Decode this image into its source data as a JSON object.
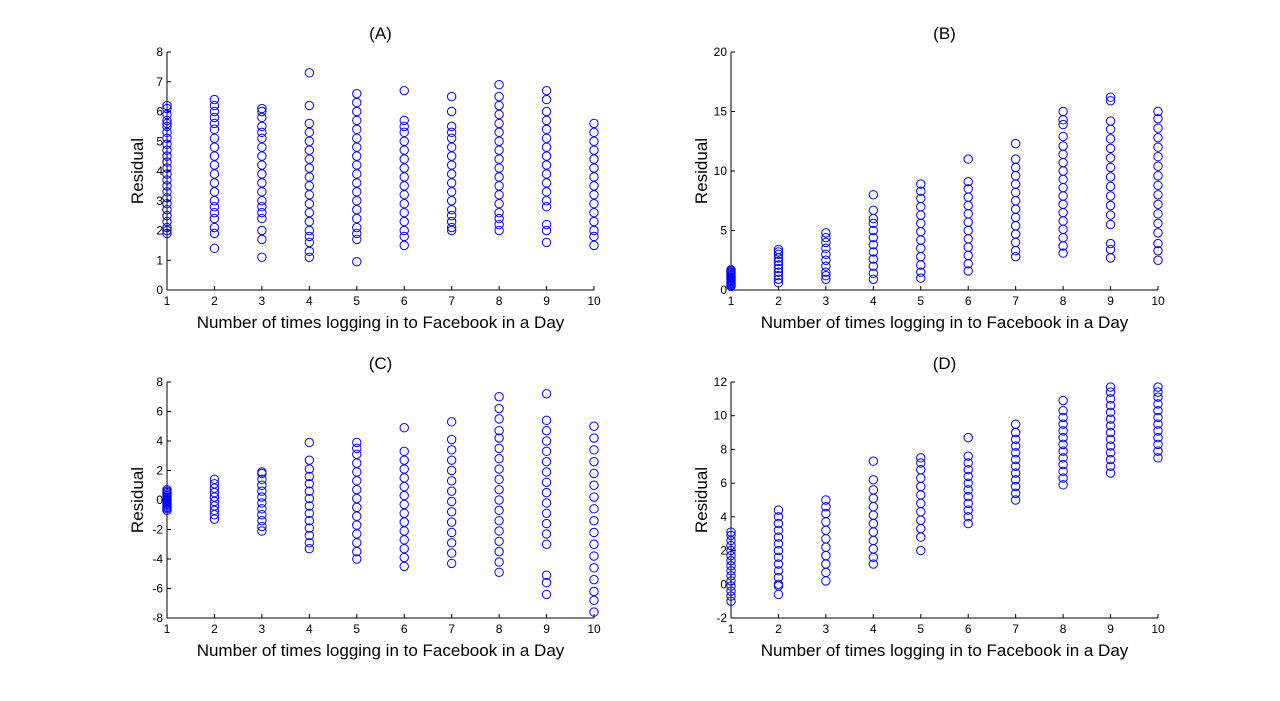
{
  "figure": {
    "background": "#ffffff",
    "marker_color": "#0000ff"
  },
  "chart_data": [
    {
      "type": "scatter",
      "title": "(A)",
      "xlabel": "Number of times logging in to Facebook in a Day",
      "ylabel": "Residual",
      "xlim": [
        1,
        10
      ],
      "ylim": [
        0,
        8
      ],
      "xticks": [
        1,
        2,
        3,
        4,
        5,
        6,
        7,
        8,
        9,
        10
      ],
      "yticks": [
        0,
        1,
        2,
        3,
        4,
        5,
        6,
        7,
        8
      ],
      "marker": "open-circle",
      "color": "#0000ff",
      "grid": false,
      "points_by_x": [
        {
          "x": 1,
          "y": [
            1.9,
            2.0,
            2.1,
            2.3,
            2.5,
            2.7,
            2.9,
            3.1,
            3.3,
            3.5,
            3.7,
            3.9,
            4.1,
            4.3,
            4.5,
            4.7,
            4.9,
            5.1,
            5.3,
            5.5,
            5.6,
            5.7,
            5.9,
            6.1,
            6.2
          ]
        },
        {
          "x": 2,
          "y": [
            1.4,
            1.9,
            2.1,
            2.4,
            2.6,
            2.8,
            3.0,
            3.3,
            3.6,
            3.9,
            4.2,
            4.5,
            4.8,
            5.1,
            5.4,
            5.6,
            5.8,
            6.0,
            6.2,
            6.4
          ]
        },
        {
          "x": 3,
          "y": [
            1.1,
            1.7,
            2.0,
            2.4,
            2.6,
            2.8,
            3.0,
            3.3,
            3.6,
            3.9,
            4.2,
            4.5,
            4.8,
            5.1,
            5.3,
            5.5,
            5.8,
            6.0,
            6.1
          ]
        },
        {
          "x": 4,
          "y": [
            1.1,
            1.3,
            1.6,
            1.8,
            2.0,
            2.3,
            2.6,
            2.9,
            3.2,
            3.5,
            3.8,
            4.1,
            4.4,
            4.7,
            5.0,
            5.3,
            5.6,
            6.2,
            7.3
          ]
        },
        {
          "x": 5,
          "y": [
            0.95,
            1.7,
            1.9,
            2.1,
            2.4,
            2.7,
            3.0,
            3.3,
            3.6,
            3.9,
            4.2,
            4.5,
            4.8,
            5.1,
            5.4,
            5.7,
            6.0,
            6.3,
            6.6
          ]
        },
        {
          "x": 6,
          "y": [
            1.5,
            1.8,
            2.0,
            2.3,
            2.6,
            2.9,
            3.2,
            3.5,
            3.8,
            4.1,
            4.4,
            4.7,
            5.0,
            5.3,
            5.5,
            5.7,
            6.7
          ]
        },
        {
          "x": 7,
          "y": [
            2.0,
            2.1,
            2.3,
            2.5,
            2.7,
            3.0,
            3.3,
            3.6,
            3.9,
            4.2,
            4.5,
            4.8,
            5.1,
            5.3,
            5.5,
            6.0,
            6.5
          ]
        },
        {
          "x": 8,
          "y": [
            2.0,
            2.2,
            2.4,
            2.6,
            2.9,
            3.2,
            3.5,
            3.8,
            4.1,
            4.4,
            4.7,
            5.0,
            5.3,
            5.6,
            5.9,
            6.2,
            6.5,
            6.9
          ]
        },
        {
          "x": 9,
          "y": [
            1.6,
            2.0,
            2.2,
            2.8,
            3.0,
            3.3,
            3.6,
            3.9,
            4.2,
            4.5,
            4.8,
            5.1,
            5.4,
            5.7,
            6.0,
            6.4,
            6.7
          ]
        },
        {
          "x": 10,
          "y": [
            1.5,
            1.8,
            2.0,
            2.3,
            2.6,
            2.9,
            3.2,
            3.5,
            3.8,
            4.1,
            4.4,
            4.7,
            5.0,
            5.3,
            5.6
          ]
        }
      ]
    },
    {
      "type": "scatter",
      "title": "(B)",
      "xlabel": "Number of times logging in to Facebook in a Day",
      "ylabel": "Residual",
      "xlim": [
        1,
        10
      ],
      "ylim": [
        0,
        20
      ],
      "xticks": [
        1,
        2,
        3,
        4,
        5,
        6,
        7,
        8,
        9,
        10
      ],
      "yticks": [
        0,
        5,
        10,
        15,
        20
      ],
      "marker": "open-circle",
      "color": "#0000ff",
      "grid": false,
      "points_by_x": [
        {
          "x": 1,
          "y": [
            0.3,
            0.4,
            0.5,
            0.6,
            0.7,
            0.8,
            0.9,
            1.0,
            1.1,
            1.2,
            1.3,
            1.4,
            1.5,
            1.6,
            1.7
          ]
        },
        {
          "x": 2,
          "y": [
            0.6,
            0.9,
            1.2,
            1.5,
            1.8,
            2.1,
            2.4,
            2.7,
            3.0,
            3.2,
            3.4
          ]
        },
        {
          "x": 3,
          "y": [
            0.9,
            1.2,
            1.5,
            2.0,
            2.5,
            3.0,
            3.5,
            4.0,
            4.4,
            4.8
          ]
        },
        {
          "x": 4,
          "y": [
            0.9,
            1.4,
            2.0,
            2.6,
            3.2,
            3.8,
            4.4,
            5.0,
            5.6,
            6.0,
            6.7,
            8.0
          ]
        },
        {
          "x": 5,
          "y": [
            1.0,
            1.5,
            2.1,
            2.8,
            3.5,
            4.2,
            4.9,
            5.6,
            6.3,
            7.0,
            7.7,
            8.3,
            8.9
          ]
        },
        {
          "x": 6,
          "y": [
            1.6,
            2.2,
            2.9,
            3.6,
            4.3,
            5.0,
            5.7,
            6.4,
            7.1,
            7.8,
            8.5,
            9.1,
            11.0
          ]
        },
        {
          "x": 7,
          "y": [
            2.8,
            3.3,
            4.0,
            4.7,
            5.4,
            6.1,
            6.8,
            7.5,
            8.2,
            8.9,
            9.6,
            10.3,
            11.0,
            12.3
          ]
        },
        {
          "x": 8,
          "y": [
            3.1,
            3.7,
            4.4,
            5.1,
            5.8,
            6.5,
            7.2,
            7.9,
            8.6,
            9.3,
            10.0,
            10.7,
            11.4,
            12.1,
            12.9,
            13.9,
            14.3,
            15.0
          ]
        },
        {
          "x": 9,
          "y": [
            2.7,
            3.4,
            3.9,
            5.5,
            6.3,
            7.1,
            7.9,
            8.7,
            9.5,
            10.3,
            11.1,
            11.9,
            12.7,
            13.5,
            14.2,
            15.9,
            16.2
          ]
        },
        {
          "x": 10,
          "y": [
            2.5,
            3.3,
            3.9,
            4.8,
            5.6,
            6.4,
            7.2,
            8.0,
            8.8,
            9.6,
            10.4,
            11.2,
            12.0,
            12.8,
            13.6,
            14.4,
            15.0
          ]
        }
      ]
    },
    {
      "type": "scatter",
      "title": "(C)",
      "xlabel": "Number of times logging in to Facebook in a Day",
      "ylabel": "Residual",
      "xlim": [
        1,
        10
      ],
      "ylim": [
        -8,
        8
      ],
      "xticks": [
        1,
        2,
        3,
        4,
        5,
        6,
        7,
        8,
        9,
        10
      ],
      "yticks": [
        -8,
        -6,
        -4,
        -2,
        0,
        2,
        4,
        6,
        8
      ],
      "marker": "open-circle",
      "color": "#0000ff",
      "grid": false,
      "points_by_x": [
        {
          "x": 1,
          "y": [
            -0.7,
            -0.6,
            -0.5,
            -0.4,
            -0.3,
            -0.2,
            -0.1,
            0.0,
            0.1,
            0.2,
            0.3,
            0.4,
            0.5,
            0.6,
            0.7
          ]
        },
        {
          "x": 2,
          "y": [
            -1.3,
            -1.0,
            -0.7,
            -0.4,
            -0.1,
            0.2,
            0.5,
            0.8,
            1.1,
            1.4
          ]
        },
        {
          "x": 3,
          "y": [
            -2.1,
            -1.8,
            -1.4,
            -1.0,
            -0.6,
            -0.2,
            0.2,
            0.6,
            1.0,
            1.4,
            1.8,
            1.9
          ]
        },
        {
          "x": 4,
          "y": [
            -3.3,
            -2.9,
            -2.4,
            -1.9,
            -1.4,
            -0.9,
            -0.4,
            0.1,
            0.6,
            1.1,
            1.6,
            2.1,
            2.7,
            3.9
          ]
        },
        {
          "x": 5,
          "y": [
            -4.0,
            -3.5,
            -2.9,
            -2.3,
            -1.7,
            -1.1,
            -0.5,
            0.1,
            0.7,
            1.3,
            1.9,
            2.5,
            3.1,
            3.5,
            3.9
          ]
        },
        {
          "x": 6,
          "y": [
            -4.5,
            -3.9,
            -3.3,
            -2.7,
            -2.1,
            -1.5,
            -0.9,
            -0.3,
            0.3,
            0.9,
            1.5,
            2.1,
            2.7,
            3.3,
            4.9
          ]
        },
        {
          "x": 7,
          "y": [
            -4.3,
            -3.6,
            -2.9,
            -2.2,
            -1.5,
            -0.8,
            -0.1,
            0.6,
            1.3,
            2.0,
            2.7,
            3.4,
            4.1,
            5.3
          ]
        },
        {
          "x": 8,
          "y": [
            -4.9,
            -4.2,
            -3.5,
            -2.8,
            -2.1,
            -1.4,
            -0.7,
            0.0,
            0.7,
            1.4,
            2.1,
            2.8,
            3.5,
            4.2,
            4.7,
            5.5,
            6.2,
            7.0
          ]
        },
        {
          "x": 9,
          "y": [
            -6.4,
            -5.6,
            -5.1,
            -3.0,
            -2.3,
            -1.6,
            -0.9,
            -0.2,
            0.5,
            1.2,
            1.9,
            2.6,
            3.3,
            4.0,
            4.7,
            5.4,
            7.2
          ]
        },
        {
          "x": 10,
          "y": [
            -7.6,
            -6.8,
            -6.2,
            -5.4,
            -4.6,
            -3.8,
            -3.0,
            -2.2,
            -1.4,
            -0.6,
            0.2,
            1.0,
            1.8,
            2.6,
            3.4,
            4.2,
            5.0
          ]
        }
      ]
    },
    {
      "type": "scatter",
      "title": "(D)",
      "xlabel": "Number of times logging in to Facebook in a Day",
      "ylabel": "Residual",
      "xlim": [
        1,
        10
      ],
      "ylim": [
        -2,
        12
      ],
      "xticks": [
        1,
        2,
        3,
        4,
        5,
        6,
        7,
        8,
        9,
        10
      ],
      "yticks": [
        -2,
        0,
        2,
        4,
        6,
        8,
        10,
        12
      ],
      "marker": "open-circle",
      "color": "#0000ff",
      "grid": false,
      "points_by_x": [
        {
          "x": 1,
          "y": [
            -1.0,
            -0.7,
            -0.4,
            -0.1,
            0.2,
            0.5,
            0.8,
            1.1,
            1.4,
            1.7,
            2.0,
            2.3,
            2.6,
            2.9,
            3.1
          ]
        },
        {
          "x": 2,
          "y": [
            -0.6,
            -0.1,
            0.0,
            0.4,
            0.8,
            1.2,
            1.6,
            2.0,
            2.4,
            2.8,
            3.2,
            3.6,
            4.0,
            4.4
          ]
        },
        {
          "x": 3,
          "y": [
            0.2,
            0.7,
            1.2,
            1.7,
            2.2,
            2.7,
            3.2,
            3.7,
            4.2,
            4.6,
            5.0
          ]
        },
        {
          "x": 4,
          "y": [
            1.2,
            1.6,
            2.1,
            2.6,
            3.1,
            3.6,
            4.1,
            4.6,
            5.1,
            5.6,
            6.2,
            7.3
          ]
        },
        {
          "x": 5,
          "y": [
            2.0,
            2.8,
            3.3,
            3.8,
            4.3,
            4.8,
            5.3,
            5.8,
            6.3,
            6.8,
            7.2,
            7.5
          ]
        },
        {
          "x": 6,
          "y": [
            3.6,
            4.0,
            4.4,
            4.8,
            5.2,
            5.6,
            6.0,
            6.4,
            6.8,
            7.2,
            7.6,
            8.7
          ]
        },
        {
          "x": 7,
          "y": [
            5.0,
            5.4,
            5.8,
            6.2,
            6.6,
            7.0,
            7.4,
            7.8,
            8.2,
            8.6,
            9.0,
            9.5
          ]
        },
        {
          "x": 8,
          "y": [
            5.9,
            6.3,
            6.7,
            7.1,
            7.5,
            7.9,
            8.3,
            8.7,
            9.1,
            9.5,
            9.9,
            10.3,
            10.9
          ]
        },
        {
          "x": 9,
          "y": [
            6.6,
            7.0,
            7.4,
            7.8,
            8.2,
            8.6,
            9.0,
            9.4,
            9.8,
            10.2,
            10.6,
            11.0,
            11.4,
            11.7
          ]
        },
        {
          "x": 10,
          "y": [
            7.5,
            7.9,
            8.3,
            8.7,
            9.1,
            9.5,
            9.9,
            10.3,
            10.7,
            11.1,
            11.4,
            11.7
          ]
        }
      ]
    }
  ]
}
